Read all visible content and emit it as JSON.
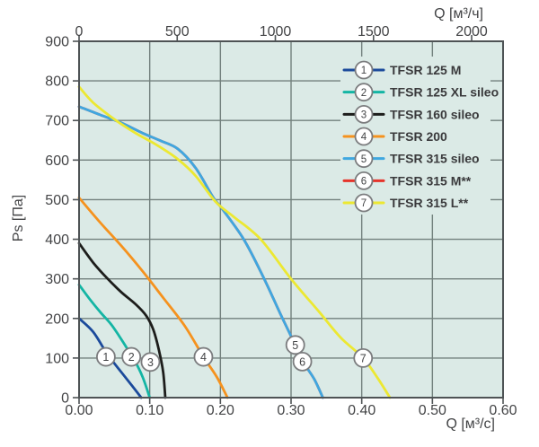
{
  "figure": {
    "kind": "fan-performance-pressure-flow-chart"
  },
  "chart_data": {
    "type": "line",
    "title": "",
    "ylabel": "Ps [Па]",
    "xlabel_top": "Q [м³/ч]",
    "xlabel_bottom": "Q [м³/c]",
    "grid": true,
    "legend_position": "top-right",
    "y_axis": {
      "min": 0,
      "max": 900,
      "step": 100,
      "tick_labels": [
        "0",
        "100",
        "200",
        "300",
        "400",
        "500",
        "600",
        "700",
        "800",
        "900"
      ]
    },
    "x_axis_bottom": {
      "unit": "м³/c",
      "min": 0,
      "max": 0.6,
      "tick_values": [
        0,
        0.1,
        0.2,
        0.3,
        0.4,
        0.5,
        0.6
      ],
      "tick_labels": [
        "0.00",
        "0.10",
        "0.20",
        "0.30",
        "0.40",
        "0.50",
        "0.60"
      ]
    },
    "x_axis_top": {
      "unit": "м³/ч",
      "min": 0,
      "max": 2160,
      "tick_values": [
        0,
        500,
        1000,
        1500,
        2000
      ],
      "tick_labels": [
        "0",
        "500",
        "1000",
        "1500",
        "2000"
      ],
      "conversion_to_bottom": 3600
    },
    "style": {
      "plot_background": "#dbeae6",
      "grid_color": "#72807d",
      "axis_color": "#4e5355",
      "text_color": "#434446",
      "marker_ring_color": "#7b7c7e",
      "marker_fill": "#ffffff"
    },
    "series": [
      {
        "id": 1,
        "name": "TFSR 125 M",
        "color": "#1b4a9b",
        "points": [
          [
            0,
            200
          ],
          [
            0.02,
            166
          ],
          [
            0.04,
            110
          ],
          [
            0.06,
            64
          ],
          [
            0.075,
            30
          ],
          [
            0.088,
            0
          ]
        ],
        "marker": {
          "q": 0.038,
          "ps": 103
        }
      },
      {
        "id": 2,
        "name": "TFSR 125 XL sileo",
        "color": "#14b5a4",
        "points": [
          [
            0,
            285
          ],
          [
            0.015,
            249
          ],
          [
            0.03,
            216
          ],
          [
            0.045,
            186
          ],
          [
            0.057,
            155
          ],
          [
            0.067,
            127
          ],
          [
            0.078,
            96
          ],
          [
            0.09,
            52
          ],
          [
            0.1,
            0
          ]
        ],
        "marker": {
          "q": 0.074,
          "ps": 103
        }
      },
      {
        "id": 3,
        "name": "TFSR 160 sileo",
        "color": "#1d1d1b",
        "points": [
          [
            0,
            390
          ],
          [
            0.02,
            341
          ],
          [
            0.04,
            301
          ],
          [
            0.06,
            266
          ],
          [
            0.08,
            236
          ],
          [
            0.095,
            207
          ],
          [
            0.105,
            172
          ],
          [
            0.113,
            120
          ],
          [
            0.119,
            65
          ],
          [
            0.122,
            0
          ]
        ],
        "marker": {
          "q": 0.101,
          "ps": 90
        }
      },
      {
        "id": 4,
        "name": "TFSR 200",
        "color": "#f5921e",
        "points": [
          [
            0,
            505
          ],
          [
            0.03,
            442
          ],
          [
            0.06,
            383
          ],
          [
            0.09,
            319
          ],
          [
            0.12,
            250
          ],
          [
            0.15,
            180
          ],
          [
            0.176,
            103
          ],
          [
            0.195,
            52
          ],
          [
            0.21,
            0
          ]
        ],
        "marker": {
          "q": 0.176,
          "ps": 103
        }
      },
      {
        "id": 5,
        "name": "TFSR 315 sileo",
        "color": "#3fa7e0",
        "points": [
          [
            0,
            735
          ],
          [
            0.03,
            714
          ],
          [
            0.06,
            694
          ],
          [
            0.09,
            668
          ],
          [
            0.115,
            649
          ],
          [
            0.14,
            628
          ],
          [
            0.165,
            580
          ],
          [
            0.19,
            505
          ],
          [
            0.202,
            478
          ],
          [
            0.233,
            400
          ],
          [
            0.262,
            300
          ],
          [
            0.285,
            211
          ],
          [
            0.306,
            133
          ],
          [
            0.318,
            88
          ],
          [
            0.333,
            46
          ],
          [
            0.345,
            0
          ]
        ],
        "marker": {
          "q": 0.306,
          "ps": 133
        }
      },
      {
        "id": 6,
        "name": "TFSR 315 M**",
        "color": "#e6332a",
        "points": [
          [
            0,
            735
          ],
          [
            0.03,
            714
          ],
          [
            0.06,
            694
          ],
          [
            0.09,
            668
          ],
          [
            0.115,
            649
          ],
          [
            0.14,
            628
          ],
          [
            0.165,
            580
          ],
          [
            0.19,
            505
          ],
          [
            0.202,
            478
          ],
          [
            0.233,
            400
          ],
          [
            0.262,
            300
          ],
          [
            0.285,
            211
          ],
          [
            0.306,
            133
          ],
          [
            0.318,
            88
          ],
          [
            0.333,
            46
          ],
          [
            0.345,
            0
          ]
        ],
        "marker": {
          "q": 0.316,
          "ps": 91
        }
      },
      {
        "id": 7,
        "name": "TFSR 315 L**",
        "color": "#ece832",
        "points": [
          [
            0,
            785
          ],
          [
            0.02,
            745
          ],
          [
            0.05,
            703
          ],
          [
            0.08,
            668
          ],
          [
            0.11,
            638
          ],
          [
            0.14,
            602
          ],
          [
            0.165,
            560
          ],
          [
            0.193,
            495
          ],
          [
            0.22,
            455
          ],
          [
            0.257,
            400
          ],
          [
            0.3,
            300
          ],
          [
            0.34,
            216
          ],
          [
            0.37,
            152
          ],
          [
            0.402,
            100
          ],
          [
            0.423,
            48
          ],
          [
            0.44,
            0
          ]
        ],
        "marker": {
          "q": 0.402,
          "ps": 100
        }
      }
    ]
  }
}
